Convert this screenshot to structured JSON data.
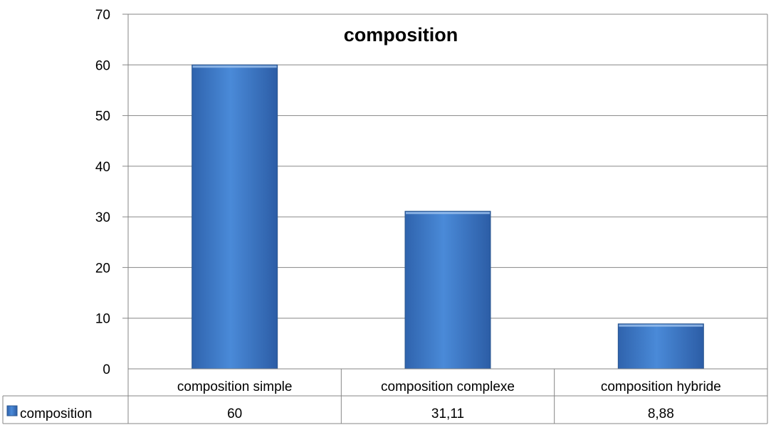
{
  "chart_data": {
    "type": "bar",
    "title": "composition",
    "categories": [
      "composition simple",
      "composition complexe",
      "composition hybride"
    ],
    "series": [
      {
        "name": "composition",
        "values": [
          60,
          31.11,
          8.88
        ],
        "value_labels": [
          "60",
          "31,11",
          "8,88"
        ]
      }
    ],
    "yticks": [
      "0",
      "10",
      "20",
      "30",
      "40",
      "50",
      "60",
      "70"
    ],
    "ylim": [
      0,
      70
    ],
    "grid": true,
    "legend": "data-table",
    "bar_color": "#3f7ccb"
  }
}
